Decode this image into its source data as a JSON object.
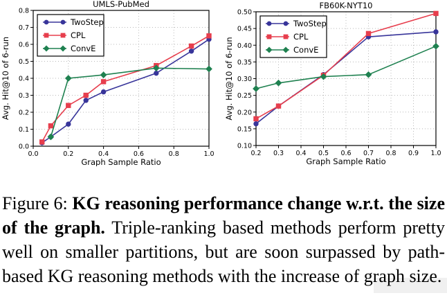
{
  "figure": {
    "caption": {
      "prefix": "Figure 6: ",
      "bold": "KG reasoning performance change w.r.t. the size of the graph.",
      "rest": " Triple-ranking based methods perform pretty well on smaller partitions, but are soon surpassed by path-based KG reasoning methods with the increase of graph size."
    }
  },
  "colors": {
    "twostep": "#38359a",
    "cpl": "#e73e4d",
    "conve": "#1f8150",
    "grid": "#b8b8b8",
    "axis": "#000000",
    "legend_border": "#000000"
  },
  "chart_data": [
    {
      "type": "line",
      "title": "UMLS-PubMed",
      "xlabel": "Graph Sample Ratio",
      "ylabel": "Avg. Hit@10 of 6-run",
      "xlim": [
        0.0,
        1.0
      ],
      "ylim": [
        0.0,
        0.8
      ],
      "grid": true,
      "legend_position": "upper-left",
      "xticks": [
        0.0,
        0.2,
        0.4,
        0.6,
        0.8,
        1.0
      ],
      "xtick_labels": [
        "0.0",
        "0.2",
        "0.4",
        "0.6",
        "0.8",
        "1.0"
      ],
      "yticks": [
        0.0,
        0.1,
        0.2,
        0.3,
        0.4,
        0.5,
        0.6,
        0.7,
        0.8
      ],
      "ytick_labels": [
        "0.0",
        "0.1",
        "0.2",
        "0.3",
        "0.4",
        "0.5",
        "0.6",
        "0.7",
        "0.8"
      ],
      "series": [
        {
          "name": "TwoStep",
          "marker": "circle",
          "color_key": "twostep",
          "points": [
            [
              0.05,
              0.02
            ],
            [
              0.1,
              0.055
            ],
            [
              0.2,
              0.13
            ],
            [
              0.3,
              0.27
            ],
            [
              0.4,
              0.32
            ],
            [
              0.7,
              0.43
            ],
            [
              0.9,
              0.56
            ],
            [
              1.0,
              0.63
            ]
          ]
        },
        {
          "name": "CPL",
          "marker": "square",
          "color_key": "cpl",
          "points": [
            [
              0.05,
              0.025
            ],
            [
              0.1,
              0.12
            ],
            [
              0.2,
              0.24
            ],
            [
              0.3,
              0.3
            ],
            [
              0.4,
              0.38
            ],
            [
              0.7,
              0.475
            ],
            [
              0.9,
              0.59
            ],
            [
              1.0,
              0.65
            ]
          ]
        },
        {
          "name": "ConvE",
          "marker": "diamond",
          "color_key": "conve",
          "points": [
            [
              0.1,
              0.055
            ],
            [
              0.2,
              0.4
            ],
            [
              0.4,
              0.42
            ],
            [
              0.7,
              0.46
            ],
            [
              1.0,
              0.455
            ]
          ]
        }
      ]
    },
    {
      "type": "line",
      "title": "FB60K-NYT10",
      "xlabel": "Graph Sample Ratio",
      "ylabel": "Avg. Hit@10 of 6-run",
      "xlim": [
        0.2,
        1.0
      ],
      "ylim": [
        0.1,
        0.5
      ],
      "grid": true,
      "legend_position": "upper-left",
      "xticks": [
        0.2,
        0.3,
        0.4,
        0.5,
        0.6,
        0.7,
        0.8,
        0.9,
        1.0
      ],
      "xtick_labels": [
        "0.2",
        "0.3",
        "0.4",
        "0.5",
        "0.6",
        "0.7",
        "0.8",
        "0.9",
        "1.0"
      ],
      "yticks": [
        0.1,
        0.15,
        0.2,
        0.25,
        0.3,
        0.35,
        0.4,
        0.45,
        0.5
      ],
      "ytick_labels": [
        "0.10",
        "0.15",
        "0.20",
        "0.25",
        "0.30",
        "0.35",
        "0.40",
        "0.45",
        "0.50"
      ],
      "series": [
        {
          "name": "TwoStep",
          "marker": "circle",
          "color_key": "twostep",
          "points": [
            [
              0.2,
              0.165
            ],
            [
              0.3,
              0.218
            ],
            [
              0.5,
              0.312
            ],
            [
              0.7,
              0.425
            ],
            [
              1.0,
              0.44
            ]
          ]
        },
        {
          "name": "CPL",
          "marker": "square",
          "color_key": "cpl",
          "points": [
            [
              0.2,
              0.18
            ],
            [
              0.3,
              0.218
            ],
            [
              0.5,
              0.31
            ],
            [
              0.7,
              0.435
            ],
            [
              1.0,
              0.495
            ]
          ]
        },
        {
          "name": "ConvE",
          "marker": "diamond",
          "color_key": "conve",
          "points": [
            [
              0.2,
              0.27
            ],
            [
              0.3,
              0.287
            ],
            [
              0.5,
              0.306
            ],
            [
              0.7,
              0.312
            ],
            [
              1.0,
              0.397
            ]
          ]
        }
      ]
    }
  ]
}
